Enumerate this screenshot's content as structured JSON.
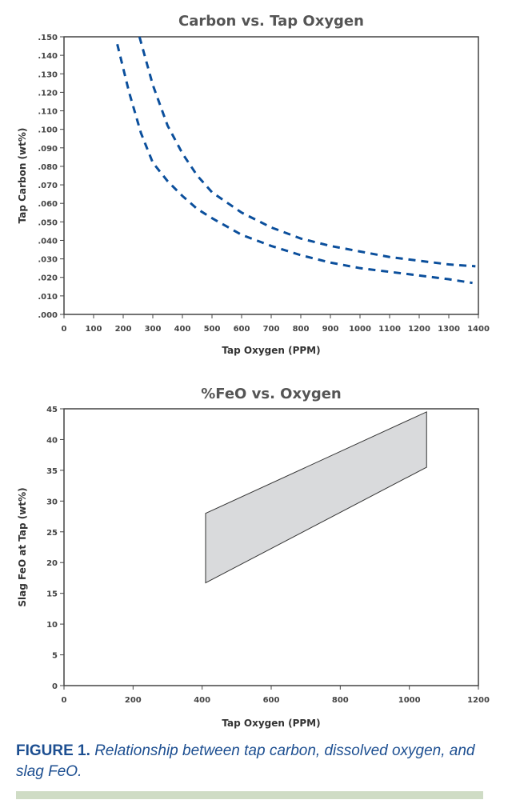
{
  "chart_data": [
    {
      "type": "line",
      "title": "Carbon vs. Tap Oxygen",
      "xlabel": "Tap Oxygen (PPM)",
      "ylabel": "Tap Carbon (wt%)",
      "xlim": [
        0,
        1400
      ],
      "ylim": [
        0,
        0.15
      ],
      "xticks": [
        "0",
        "100",
        "200",
        "300",
        "400",
        "500",
        "600",
        "700",
        "800",
        "900",
        "1000",
        "1100",
        "1200",
        "1300",
        "1400"
      ],
      "yticks": [
        ".000",
        ".010",
        ".020",
        ".030",
        ".040",
        ".050",
        ".060",
        ".070",
        ".080",
        ".090",
        ".100",
        ".110",
        ".120",
        ".130",
        ".140",
        ".150"
      ],
      "grid": false,
      "line_style": "dashed",
      "color": "#0b4f9c",
      "series": [
        {
          "x": [
            180,
            220,
            260,
            300,
            350,
            400,
            450,
            500,
            600,
            700,
            800,
            900,
            1000,
            1100,
            1200,
            1300,
            1380
          ],
          "y": [
            0.146,
            0.12,
            0.098,
            0.082,
            0.072,
            0.064,
            0.057,
            0.052,
            0.043,
            0.037,
            0.032,
            0.028,
            0.025,
            0.023,
            0.021,
            0.019,
            0.017
          ]
        },
        {
          "x": [
            255,
            300,
            350,
            400,
            450,
            500,
            600,
            700,
            800,
            900,
            1000,
            1100,
            1200,
            1300,
            1390
          ],
          "y": [
            0.15,
            0.124,
            0.102,
            0.087,
            0.075,
            0.066,
            0.055,
            0.047,
            0.041,
            0.037,
            0.034,
            0.031,
            0.029,
            0.027,
            0.026
          ]
        }
      ]
    },
    {
      "type": "area",
      "title": "%FeO vs. Oxygen",
      "xlabel": "Tap Oxygen (PPM)",
      "ylabel": "Slag FeO at Tap (wt%)",
      "xlim": [
        0,
        1200
      ],
      "ylim": [
        0,
        45
      ],
      "xticks": [
        "0",
        "200",
        "400",
        "600",
        "800",
        "1000",
        "1200"
      ],
      "yticks": [
        "0",
        "5",
        "10",
        "15",
        "20",
        "25",
        "30",
        "35",
        "40",
        "45"
      ],
      "grid": false,
      "fill_color": "#d9dadc",
      "polygon": [
        [
          410,
          28
        ],
        [
          1050,
          44.5
        ],
        [
          1050,
          35.5
        ],
        [
          410,
          16.7
        ]
      ]
    }
  ],
  "caption": {
    "label": "FIGURE 1.",
    "text": "Relationship between tap carbon, dissolved oxygen, and slag FeO."
  }
}
